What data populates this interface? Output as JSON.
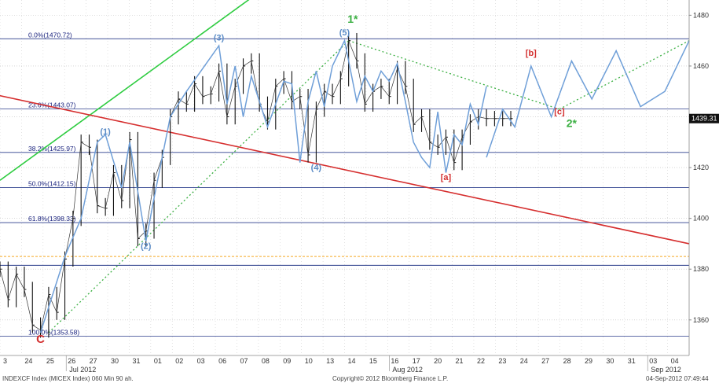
{
  "chart_data": {
    "type": "line",
    "title": "",
    "ylim": [
      1346,
      1486
    ],
    "y_ticks": [
      1360,
      1380,
      1400,
      1420,
      1440,
      1460,
      1480
    ],
    "x_day_labels": [
      "3",
      "24",
      "25",
      "26",
      "27",
      "30",
      "31",
      "01",
      "02",
      "03",
      "06",
      "07",
      "08",
      "09",
      "10",
      "13",
      "14",
      "15",
      "16",
      "17",
      "20",
      "21",
      "22",
      "23",
      "24",
      "27",
      "28",
      "29",
      "30",
      "31",
      "03",
      "04"
    ],
    "x_month_labels": [
      "Jul 2012",
      "Aug 2012",
      "Sep 2012"
    ],
    "last_price": "1439.31",
    "fib_levels": [
      {
        "label": "0.0%(1470.72)",
        "value": 1470.72
      },
      {
        "label": "23.6%(1443.07)",
        "value": 1443.07
      },
      {
        "label": "38.2%(1425.97)",
        "value": 1425.97
      },
      {
        "label": "50.0%(1412.15)",
        "value": 1412.15
      },
      {
        "label": "61.8%(1398.33)",
        "value": 1398.33
      },
      {
        "label": "100.0%(1353.58)",
        "value": 1353.58
      }
    ],
    "extra_levels": [
      {
        "value": 1385,
        "color": "#f5a623",
        "style": "dotted"
      },
      {
        "value": 1381.5,
        "color": "#2c3e8c",
        "style": "solid"
      }
    ],
    "price_series": {
      "name": "",
      "x": [
        0,
        2,
        4,
        6,
        8,
        10,
        12,
        14,
        16,
        18,
        20,
        22,
        24,
        26,
        28,
        30,
        32,
        34,
        36,
        38,
        40,
        42,
        44,
        46,
        48,
        50,
        52,
        54,
        56,
        58,
        60,
        62,
        64,
        66,
        68,
        70,
        72,
        74,
        76,
        78,
        80,
        82,
        84,
        86,
        88,
        90,
        92,
        94,
        96,
        98,
        100,
        102,
        104,
        106,
        108,
        110,
        112,
        114,
        116,
        118,
        120,
        122,
        124,
        126
      ],
      "values": [
        1380,
        1368,
        1378,
        1372,
        1358,
        1356,
        1370,
        1363,
        1384,
        1400,
        1430,
        1428,
        1405,
        1404,
        1418,
        1407,
        1431,
        1392,
        1395,
        1415,
        1424,
        1440,
        1447,
        1445,
        1453,
        1448,
        1449,
        1458,
        1440,
        1452,
        1460,
        1462,
        1445,
        1438,
        1452,
        1455,
        1446,
        1448,
        1425,
        1443,
        1450,
        1448,
        1455,
        1470,
        1462,
        1445,
        1450,
        1452,
        1448,
        1459,
        1452,
        1437,
        1440,
        1430,
        1428,
        1432,
        1422,
        1432,
        1438,
        1440,
        1439.31,
        1439.31,
        1439.31,
        1439.31
      ]
    },
    "wave_path": {
      "name": "",
      "x": [
        10,
        14,
        16,
        20,
        22,
        24,
        26,
        30,
        32,
        36,
        38,
        42,
        46,
        50,
        54,
        56,
        58,
        60,
        62,
        66,
        70,
        72,
        74,
        76,
        78,
        80,
        82,
        85,
        88,
        90,
        92,
        94,
        96,
        98,
        100,
        102,
        104,
        106,
        108,
        110,
        112,
        114,
        116,
        118,
        120
      ],
      "values": [
        1355,
        1375,
        1385,
        1400,
        1415,
        1430,
        1433,
        1412,
        1430,
        1391,
        1408,
        1440,
        1450,
        1459,
        1468,
        1445,
        1460,
        1440,
        1456,
        1436,
        1454,
        1453,
        1422,
        1446,
        1458,
        1444,
        1460,
        1470,
        1446,
        1456,
        1450,
        1458,
        1454,
        1461,
        1446,
        1430,
        1424,
        1420,
        1442,
        1418,
        1433,
        1429,
        1445,
        1437,
        1452
      ]
    },
    "projection": {
      "x": [
        120,
        124,
        127,
        131,
        136,
        141,
        146,
        152,
        158,
        164,
        170
      ],
      "values": [
        1424,
        1443,
        1436,
        1460,
        1440,
        1462,
        1447,
        1466,
        1444,
        1450,
        1470
      ]
    },
    "wave_labels": [
      {
        "text": "C",
        "x": 10,
        "y": 1351,
        "color": "#d32f2f",
        "size": 15
      },
      {
        "text": "(1)",
        "x": 26,
        "y": 1433,
        "color": "#5b8cc7",
        "size": 11
      },
      {
        "text": "(2)",
        "x": 36,
        "y": 1388,
        "color": "#5b8cc7",
        "size": 11
      },
      {
        "text": "(3)",
        "x": 54,
        "y": 1470,
        "color": "#5b8cc7",
        "size": 11
      },
      {
        "text": "(4)",
        "x": 78,
        "y": 1419,
        "color": "#5b8cc7",
        "size": 11
      },
      {
        "text": "(5)",
        "x": 85,
        "y": 1472,
        "color": "#5b8cc7",
        "size": 11
      },
      {
        "text": "1*",
        "x": 87,
        "y": 1477,
        "color": "#3cb043",
        "size": 14
      },
      {
        "text": "[a]",
        "x": 110,
        "y": 1415,
        "color": "#d32f2f",
        "size": 11
      },
      {
        "text": "[b]",
        "x": 131,
        "y": 1464,
        "color": "#d32f2f",
        "size": 11
      },
      {
        "text": "[c]",
        "x": 138,
        "y": 1441,
        "color": "#d32f2f",
        "size": 11
      },
      {
        "text": "2*",
        "x": 141,
        "y": 1436,
        "color": "#3cb043",
        "size": 14
      }
    ],
    "trendlines": [
      {
        "x": [
          0,
          63
        ],
        "y": [
          1415,
          1488
        ],
        "color": "#2ecc40",
        "style": "solid"
      },
      {
        "x": [
          -2,
          170
        ],
        "y": [
          1449,
          1390
        ],
        "color": "#d62f2f",
        "style": "solid"
      },
      {
        "x": [
          12,
          86
        ],
        "y": [
          1355,
          1470
        ],
        "color": "#3cb043",
        "style": "dotted"
      },
      {
        "x": [
          86,
          138
        ],
        "y": [
          1470,
          1443
        ],
        "color": "#3cb043",
        "style": "dotted"
      },
      {
        "x": [
          138,
          170
        ],
        "y": [
          1443,
          1470
        ],
        "color": "#3cb043",
        "style": "dotted"
      }
    ],
    "footer": {
      "left": "INDEXCF Index (MICEX Index) 060 Min 90 ah.",
      "center": "Copyright© 2012 Bloomberg Finance L.P.",
      "right": "04-Sep-2012 07:49:44"
    }
  }
}
